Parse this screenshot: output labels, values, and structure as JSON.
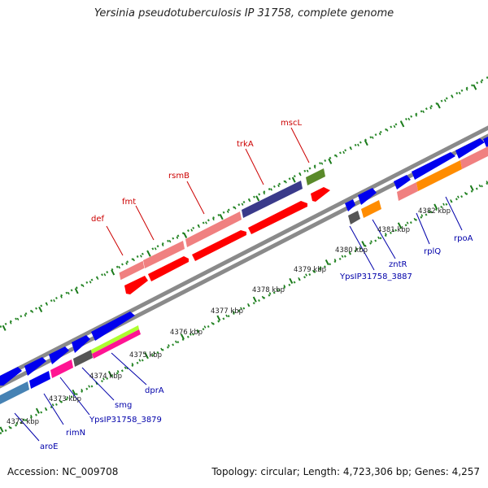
{
  "title": "Yersinia pseudotuberculosis IP 31758, complete genome",
  "footer": {
    "accession": "Accession: NC_009708",
    "summary": "Topology: circular; Length: 4,723,306 bp; Genes: 4,257"
  },
  "kbp_ticks": [
    {
      "label": "4372 kbp"
    },
    {
      "label": "4373 kbp"
    },
    {
      "label": "4374 kbp"
    },
    {
      "label": "4375 kbp"
    },
    {
      "label": "4376 kbp"
    },
    {
      "label": "4377 kbp"
    },
    {
      "label": "4378 kbp"
    },
    {
      "label": "4379 kbp"
    },
    {
      "label": "4380 kbp"
    },
    {
      "label": "4381 kbp"
    },
    {
      "label": "4382 kbp"
    }
  ],
  "gene_labels_top": [
    {
      "name": "def",
      "color": "#cc0000"
    },
    {
      "name": "fmt",
      "color": "#cc0000"
    },
    {
      "name": "rsmB",
      "color": "#cc0000"
    },
    {
      "name": "trkA",
      "color": "#cc0000"
    },
    {
      "name": "mscL",
      "color": "#cc0000"
    }
  ],
  "gene_labels_bottom": [
    {
      "name": "aroE",
      "color": "#0000aa"
    },
    {
      "name": "rimN",
      "color": "#0000aa"
    },
    {
      "name": "YpsIP31758_3879",
      "color": "#0000aa"
    },
    {
      "name": "smg",
      "color": "#0000aa"
    },
    {
      "name": "dprA",
      "color": "#0000aa"
    },
    {
      "name": "YpsIP31758_3887",
      "color": "#0000aa"
    },
    {
      "name": "zntR",
      "color": "#0000aa"
    },
    {
      "name": "rplQ",
      "color": "#0000aa"
    },
    {
      "name": "rpoA",
      "color": "#0000aa"
    }
  ],
  "colors": {
    "backbone": "#888888",
    "forward_cds": "#ff0000",
    "forward_cog": "#f08080",
    "reverse_cds": "#0000ee",
    "dots": "#2a8a2a",
    "ticks": "#1a7a1a"
  }
}
